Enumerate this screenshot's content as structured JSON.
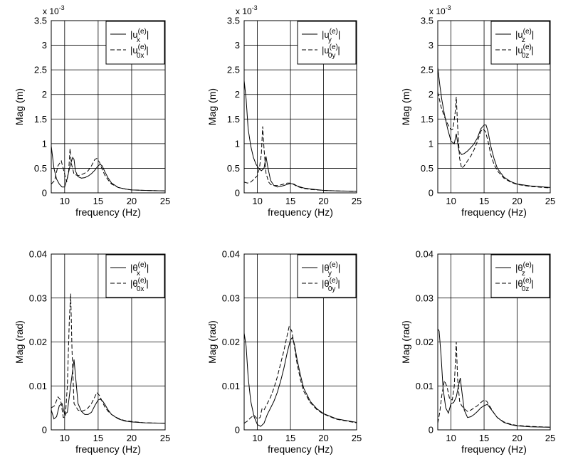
{
  "chart_data": [
    {
      "type": "line",
      "xlabel": "frequency (Hz)",
      "ylabel": "Mag (m)",
      "xlim": [
        8,
        25
      ],
      "ylim": [
        0,
        3.5
      ],
      "xticks": [
        "10",
        "15",
        "20",
        "25"
      ],
      "yticks": [
        "0",
        "0.5",
        "1",
        "1.5",
        "2",
        "2.5",
        "3",
        "3.5"
      ],
      "exponent_label": "x 10",
      "exponent_power": "-3",
      "grid": true,
      "legend_position": "top-right",
      "legend": [
        {
          "base": "|u",
          "sup": "(e)",
          "sub": "x",
          "close": "|"
        },
        {
          "base": "|u",
          "sup": "(e)",
          "sub": "0x",
          "close": "|"
        }
      ],
      "series": [
        {
          "style": "solid",
          "x": [
            8,
            8.4,
            8.8,
            9.2,
            9.6,
            10,
            10.4,
            10.8,
            11.2,
            11.4,
            11.6,
            12,
            12.5,
            13,
            13.5,
            14,
            14.5,
            15,
            15.3,
            15.6,
            16,
            16.5,
            17,
            18,
            19,
            20,
            22,
            25
          ],
          "y": [
            0.95,
            0.5,
            0.28,
            0.18,
            0.12,
            0.12,
            0.3,
            0.55,
            0.72,
            0.68,
            0.45,
            0.33,
            0.3,
            0.31,
            0.34,
            0.39,
            0.46,
            0.55,
            0.58,
            0.55,
            0.43,
            0.3,
            0.2,
            0.11,
            0.08,
            0.06,
            0.05,
            0.04
          ]
        },
        {
          "style": "dash",
          "x": [
            8,
            8.5,
            9,
            9.5,
            10,
            10.3,
            10.6,
            10.8,
            11,
            11.4,
            12,
            12.5,
            13,
            13.5,
            14,
            14.5,
            14.8,
            15.2,
            15.6,
            16,
            16.5,
            17,
            18,
            19,
            20,
            22,
            25
          ],
          "y": [
            0.18,
            0.25,
            0.55,
            0.65,
            0.38,
            0.22,
            0.45,
            0.9,
            0.6,
            0.38,
            0.35,
            0.37,
            0.4,
            0.45,
            0.55,
            0.68,
            0.7,
            0.62,
            0.48,
            0.36,
            0.26,
            0.18,
            0.11,
            0.08,
            0.06,
            0.05,
            0.04
          ]
        }
      ]
    },
    {
      "type": "line",
      "xlabel": "frequency (Hz)",
      "ylabel": "Mag (m)",
      "xlim": [
        8,
        25
      ],
      "ylim": [
        0,
        3.5
      ],
      "xticks": [
        "10",
        "15",
        "20",
        "25"
      ],
      "yticks": [
        "0",
        "0.5",
        "1",
        "1.5",
        "2",
        "2.5",
        "3",
        "3.5"
      ],
      "exponent_label": "x 10",
      "exponent_power": "-3",
      "grid": true,
      "legend_position": "top-right",
      "legend": [
        {
          "base": "|u",
          "sup": "(e)",
          "sub": "y",
          "close": "|"
        },
        {
          "base": "|u",
          "sup": "(e)",
          "sub": "0y",
          "close": "|"
        }
      ],
      "series": [
        {
          "style": "solid",
          "x": [
            8,
            8.3,
            8.6,
            9,
            9.4,
            9.8,
            10.2,
            10.6,
            11,
            11.3,
            11.6,
            12,
            12.5,
            13,
            13.5,
            14,
            14.5,
            15,
            15.5,
            16,
            17,
            18,
            20,
            22,
            25
          ],
          "y": [
            2.28,
            1.9,
            1.3,
            0.95,
            0.72,
            0.58,
            0.5,
            0.45,
            0.5,
            0.74,
            0.5,
            0.25,
            0.15,
            0.12,
            0.13,
            0.15,
            0.17,
            0.19,
            0.18,
            0.14,
            0.1,
            0.08,
            0.05,
            0.04,
            0.03
          ]
        },
        {
          "style": "dash",
          "x": [
            8,
            8.5,
            9,
            9.5,
            10,
            10.3,
            10.6,
            10.8,
            11,
            11.3,
            11.7,
            12,
            12.5,
            13,
            13.5,
            14,
            14.5,
            15,
            15.5,
            16,
            17,
            18,
            20,
            22,
            25
          ],
          "y": [
            0.22,
            0.2,
            0.22,
            0.28,
            0.35,
            0.5,
            0.8,
            1.35,
            0.9,
            0.4,
            0.22,
            0.17,
            0.15,
            0.15,
            0.16,
            0.18,
            0.2,
            0.2,
            0.17,
            0.13,
            0.09,
            0.07,
            0.05,
            0.04,
            0.03
          ]
        }
      ]
    },
    {
      "type": "line",
      "xlabel": "frequency (Hz)",
      "ylabel": "Mag (m)",
      "xlim": [
        8,
        25
      ],
      "ylim": [
        0,
        3.5
      ],
      "xticks": [
        "10",
        "15",
        "20",
        "25"
      ],
      "yticks": [
        "0",
        "0.5",
        "1",
        "1.5",
        "2",
        "2.5",
        "3",
        "3.5"
      ],
      "exponent_label": "x 10",
      "exponent_power": "-3",
      "grid": true,
      "legend_position": "top-right",
      "legend": [
        {
          "base": "|u",
          "sup": "(e)",
          "sub": "z",
          "close": "|"
        },
        {
          "base": "|u",
          "sup": "(e)",
          "sub": "0z",
          "close": "|"
        }
      ],
      "series": [
        {
          "style": "solid",
          "x": [
            8,
            8.3,
            8.6,
            9,
            9.5,
            10,
            10.5,
            10.8,
            11.2,
            11.6,
            12,
            12.5,
            13,
            13.5,
            14,
            14.5,
            15,
            15.3,
            15.6,
            16,
            16.5,
            17,
            18,
            19,
            20,
            22,
            25
          ],
          "y": [
            2.55,
            2.2,
            1.9,
            1.6,
            1.3,
            1.05,
            1.0,
            1.2,
            0.85,
            0.78,
            0.8,
            0.85,
            0.92,
            1.0,
            1.12,
            1.3,
            1.38,
            1.38,
            1.25,
            0.95,
            0.7,
            0.5,
            0.32,
            0.23,
            0.18,
            0.14,
            0.11
          ]
        },
        {
          "style": "dash",
          "x": [
            8,
            8.5,
            9,
            9.5,
            10,
            10.3,
            10.6,
            10.8,
            11,
            11.3,
            11.6,
            12,
            12.5,
            13,
            13.5,
            14,
            14.5,
            14.8,
            15.2,
            15.6,
            16,
            16.5,
            17,
            18,
            19,
            20,
            22,
            25
          ],
          "y": [
            2.05,
            1.75,
            1.55,
            1.4,
            1.28,
            1.3,
            1.6,
            1.95,
            1.35,
            0.7,
            0.5,
            0.55,
            0.65,
            0.75,
            0.88,
            1.05,
            1.25,
            1.3,
            1.25,
            1.05,
            0.78,
            0.58,
            0.45,
            0.3,
            0.22,
            0.17,
            0.13,
            0.1
          ]
        }
      ]
    },
    {
      "type": "line",
      "xlabel": "frequency (Hz)",
      "ylabel": "Mag (rad)",
      "xlim": [
        8,
        25
      ],
      "ylim": [
        0,
        0.04
      ],
      "xticks": [
        "10",
        "15",
        "20",
        "25"
      ],
      "yticks": [
        "0",
        "0.01",
        "0.02",
        "0.03",
        "0.04"
      ],
      "grid": true,
      "legend_position": "top-right",
      "legend": [
        {
          "base": "|θ",
          "sup": "(e)",
          "sub": "x",
          "close": "|"
        },
        {
          "base": "|θ",
          "sup": "(e)",
          "sub": "0x",
          "close": "|"
        }
      ],
      "series": [
        {
          "style": "solid",
          "x": [
            8,
            8.4,
            8.8,
            9.2,
            9.6,
            10,
            10.4,
            10.8,
            11.2,
            11.4,
            11.7,
            12,
            12.5,
            13,
            13.5,
            14,
            14.5,
            15,
            15.3,
            15.7,
            16,
            16.5,
            17,
            18,
            19,
            20,
            22,
            25
          ],
          "y": [
            0.0045,
            0.0025,
            0.003,
            0.0055,
            0.006,
            0.0035,
            0.004,
            0.009,
            0.0135,
            0.016,
            0.011,
            0.006,
            0.0042,
            0.0035,
            0.0035,
            0.004,
            0.0055,
            0.0068,
            0.007,
            0.0065,
            0.0058,
            0.0045,
            0.0035,
            0.0025,
            0.002,
            0.0018,
            0.0016,
            0.0015
          ]
        },
        {
          "style": "dash",
          "x": [
            8,
            8.5,
            9,
            9.4,
            9.8,
            10.1,
            10.4,
            10.7,
            10.9,
            11.1,
            11.4,
            12,
            12.5,
            13,
            13.5,
            14,
            14.5,
            14.8,
            15.2,
            15.6,
            16,
            16.5,
            17,
            18,
            19,
            20,
            22,
            25
          ],
          "y": [
            0.005,
            0.0055,
            0.0075,
            0.0068,
            0.0028,
            0.003,
            0.01,
            0.025,
            0.031,
            0.018,
            0.006,
            0.0045,
            0.0042,
            0.0045,
            0.005,
            0.006,
            0.0075,
            0.0085,
            0.0078,
            0.0065,
            0.0052,
            0.0042,
            0.0035,
            0.0026,
            0.0021,
            0.0019,
            0.0016,
            0.0015
          ]
        }
      ]
    },
    {
      "type": "line",
      "xlabel": "frequency (Hz)",
      "ylabel": "Mag (rad)",
      "xlim": [
        8,
        25
      ],
      "ylim": [
        0,
        0.04
      ],
      "xticks": [
        "10",
        "15",
        "20",
        "25"
      ],
      "yticks": [
        "0",
        "0.01",
        "0.02",
        "0.03",
        "0.04"
      ],
      "grid": true,
      "legend_position": "top-right",
      "legend": [
        {
          "base": "|θ",
          "sup": "(e)",
          "sub": "y",
          "close": "|"
        },
        {
          "base": "|θ",
          "sup": "(e)",
          "sub": "0y",
          "close": "|"
        }
      ],
      "series": [
        {
          "style": "solid",
          "x": [
            8,
            8.3,
            8.6,
            9,
            9.5,
            10,
            10.5,
            11,
            11.5,
            12,
            12.5,
            13,
            13.5,
            14,
            14.5,
            15,
            15.3,
            15.6,
            16,
            16.5,
            17,
            18,
            19,
            20,
            22,
            25
          ],
          "y": [
            0.022,
            0.019,
            0.012,
            0.0065,
            0.003,
            0.0012,
            0.0008,
            0.0015,
            0.0035,
            0.005,
            0.0065,
            0.0085,
            0.011,
            0.014,
            0.0175,
            0.0205,
            0.021,
            0.0195,
            0.016,
            0.0125,
            0.0095,
            0.0065,
            0.0048,
            0.0037,
            0.0025,
            0.0017
          ]
        },
        {
          "style": "dash",
          "x": [
            8,
            8.5,
            9,
            9.5,
            10,
            10.4,
            10.7,
            11,
            11.5,
            12,
            12.5,
            13,
            13.5,
            14,
            14.5,
            14.8,
            15.2,
            15.6,
            16,
            16.5,
            17,
            18,
            19,
            20,
            22,
            25
          ],
          "y": [
            0.0015,
            0.002,
            0.0028,
            0.0033,
            0.0025,
            0.0028,
            0.0048,
            0.0045,
            0.006,
            0.0075,
            0.0095,
            0.012,
            0.015,
            0.018,
            0.0215,
            0.0235,
            0.0225,
            0.019,
            0.015,
            0.0115,
            0.0088,
            0.0062,
            0.0046,
            0.0036,
            0.0024,
            0.0016
          ]
        }
      ]
    },
    {
      "type": "line",
      "xlabel": "frequency (Hz)",
      "ylabel": "Mag (rad)",
      "xlim": [
        8,
        25
      ],
      "ylim": [
        0,
        0.04
      ],
      "xticks": [
        "10",
        "15",
        "20",
        "25"
      ],
      "yticks": [
        "0",
        "0.01",
        "0.02",
        "0.03",
        "0.04"
      ],
      "grid": true,
      "legend_position": "top-right",
      "legend": [
        {
          "base": "|θ",
          "sup": "(e)",
          "sub": "z",
          "close": "|"
        },
        {
          "base": "|θ",
          "sup": "(e)",
          "sub": "0z",
          "close": "|"
        }
      ],
      "series": [
        {
          "style": "solid",
          "x": [
            8,
            8.2,
            8.5,
            8.8,
            9.2,
            9.6,
            10,
            10.4,
            10.8,
            11.2,
            11.4,
            11.7,
            12,
            12.5,
            13,
            13.5,
            14,
            14.5,
            15,
            15.5,
            16,
            17,
            18,
            19,
            20,
            22,
            25
          ],
          "y": [
            0.023,
            0.0225,
            0.017,
            0.0095,
            0.005,
            0.0038,
            0.006,
            0.0062,
            0.0075,
            0.0105,
            0.0118,
            0.008,
            0.0045,
            0.0028,
            0.003,
            0.0035,
            0.0042,
            0.005,
            0.0055,
            0.0058,
            0.0048,
            0.0028,
            0.0017,
            0.0012,
            0.0009,
            0.0007,
            0.0006
          ]
        },
        {
          "style": "dash",
          "x": [
            8,
            8.3,
            8.6,
            9,
            9.4,
            9.8,
            10.2,
            10.5,
            10.8,
            11,
            11.3,
            11.6,
            12,
            12.5,
            13,
            13.5,
            14,
            14.5,
            15,
            15.4,
            15.8,
            16.5,
            17,
            18,
            19,
            20,
            22,
            25
          ],
          "y": [
            0.0015,
            0.004,
            0.0078,
            0.0112,
            0.0098,
            0.007,
            0.0068,
            0.01,
            0.02,
            0.0115,
            0.0065,
            0.0055,
            0.0048,
            0.0042,
            0.0045,
            0.005,
            0.0055,
            0.0062,
            0.0068,
            0.0065,
            0.0055,
            0.0038,
            0.0028,
            0.0018,
            0.0013,
            0.001,
            0.0008,
            0.0006
          ]
        }
      ]
    }
  ]
}
